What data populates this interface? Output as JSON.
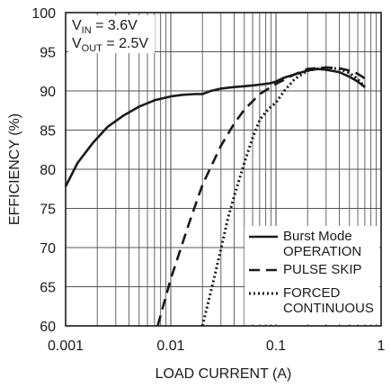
{
  "chart_data": {
    "type": "line",
    "title": "",
    "xlabel": "LOAD CURRENT (A)",
    "ylabel": "EFFICIENCY (%)",
    "xscale": "log",
    "xlim": [
      0.001,
      1
    ],
    "ylim": [
      60,
      100
    ],
    "grid": true,
    "x_tick_labels": [
      "0.001",
      "0.01",
      "0.1",
      "1"
    ],
    "y_tick_labels": [
      "60",
      "65",
      "70",
      "75",
      "80",
      "85",
      "90",
      "95",
      "100"
    ],
    "annotations": [
      {
        "main": "V",
        "sub": "IN",
        "rest": " = 3.6V"
      },
      {
        "main": "V",
        "sub": "OUT",
        "rest": " = 2.5V"
      }
    ],
    "legend_position": "bottom-right",
    "series": [
      {
        "name": "Burst Mode OPERATION",
        "legend_lines": [
          "Burst Mode",
          "OPERATION"
        ],
        "style": "solid",
        "color": "#1a1a1a",
        "x": [
          0.001,
          0.0013,
          0.0018,
          0.0025,
          0.0035,
          0.005,
          0.007,
          0.01,
          0.013,
          0.017,
          0.02,
          0.022,
          0.024,
          0.03,
          0.04,
          0.05,
          0.06,
          0.07,
          0.08,
          0.09,
          0.1,
          0.12,
          0.15,
          0.2,
          0.25,
          0.3,
          0.4,
          0.5,
          0.6,
          0.7
        ],
        "y": [
          77.8,
          80.8,
          83.3,
          85.4,
          86.8,
          88.0,
          88.8,
          89.3,
          89.5,
          89.6,
          89.6,
          89.8,
          90.0,
          90.3,
          90.5,
          90.6,
          90.7,
          90.8,
          90.9,
          91.0,
          91.2,
          91.7,
          92.1,
          92.6,
          92.8,
          92.7,
          92.4,
          91.8,
          91.2,
          90.5
        ]
      },
      {
        "name": "PULSE SKIP",
        "legend_lines": [
          "PULSE SKIP"
        ],
        "style": "dashed",
        "color": "#1a1a1a",
        "x": [
          0.0075,
          0.01,
          0.015,
          0.02,
          0.03,
          0.04,
          0.05,
          0.07,
          0.1,
          0.15,
          0.2,
          0.3,
          0.4,
          0.5,
          0.6,
          0.7
        ],
        "y": [
          60,
          66.0,
          73.2,
          78.0,
          83.0,
          85.8,
          87.6,
          89.6,
          90.9,
          92.1,
          92.8,
          93.0,
          92.9,
          92.6,
          92.2,
          91.6
        ]
      },
      {
        "name": "FORCED CONTINUOUS",
        "legend_lines": [
          "FORCED",
          "CONTINUOUS"
        ],
        "style": "dotted",
        "color": "#1a1a1a",
        "x": [
          0.02,
          0.025,
          0.03,
          0.035,
          0.04,
          0.05,
          0.06,
          0.07,
          0.08,
          0.09,
          0.1,
          0.12,
          0.15,
          0.2,
          0.3,
          0.4,
          0.5,
          0.6,
          0.7
        ],
        "y": [
          60,
          65.3,
          69.8,
          73.8,
          76.5,
          80.8,
          84.0,
          86.3,
          87.3,
          88.0,
          88.5,
          90.0,
          91.5,
          92.6,
          93.0,
          92.8,
          92.3,
          91.5,
          90.5
        ]
      }
    ]
  }
}
